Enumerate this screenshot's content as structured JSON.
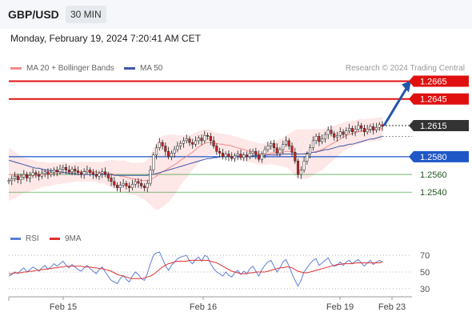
{
  "header": {
    "pair": "GBP/USD",
    "timeframe": "30 MIN"
  },
  "timestamp": "Monday, February 19, 2024 7:20:41 AM CET",
  "source": "Research © 2024 Trading Central",
  "colors": {
    "resistance": "#e01010",
    "current": "#333333",
    "pivot": "#1f57c7",
    "support": "#2e9c2e",
    "ma20": "#f28b8b",
    "ma50": "#3e56a8",
    "band": "#fbd3d3",
    "rsi": "#5b7fd6",
    "rsi_ma": "#e03030",
    "bull": "#ffffff",
    "bear": "#cc2222",
    "arrow": "#2456a8"
  },
  "chart_data": [
    {
      "type": "candlestick",
      "title": "GBP/USD 30 MIN",
      "legend": [
        {
          "label": "MA 20 + Bollinger Bands",
          "color": "#f28b8b"
        },
        {
          "label": "MA 50",
          "color": "#3e56a8"
        }
      ],
      "legend_position": "top-left",
      "x_ticks": [
        "Feb 15",
        "Feb 16",
        "Feb 19",
        "Feb 23"
      ],
      "ylim": [
        1.2524,
        1.267
      ],
      "levels": [
        {
          "value": 1.2665,
          "label": "1.2665",
          "kind": "resistance"
        },
        {
          "value": 1.2645,
          "label": "1.2645",
          "kind": "resistance"
        },
        {
          "value": 1.2615,
          "label": "1.2615",
          "kind": "current"
        },
        {
          "value": 1.258,
          "label": "1.2580",
          "kind": "pivot"
        },
        {
          "value": 1.256,
          "label": "1.2560",
          "kind": "support"
        },
        {
          "value": 1.254,
          "label": "1.2540",
          "kind": "support"
        }
      ],
      "close": [
        1.2553,
        1.2555,
        1.2558,
        1.2554,
        1.2557,
        1.256,
        1.2556,
        1.2559,
        1.2562,
        1.256,
        1.2558,
        1.2561,
        1.2563,
        1.256,
        1.2562,
        1.2565,
        1.2563,
        1.2566,
        1.2568,
        1.2565,
        1.2563,
        1.2566,
        1.2564,
        1.2562,
        1.256,
        1.2563,
        1.2565,
        1.2562,
        1.256,
        1.2558,
        1.2561,
        1.2563,
        1.256,
        1.2556,
        1.2552,
        1.2548,
        1.2545,
        1.2548,
        1.255,
        1.2547,
        1.2545,
        1.2549,
        1.2552,
        1.255,
        1.2547,
        1.2545,
        1.255,
        1.2565,
        1.2582,
        1.259,
        1.2596,
        1.2592,
        1.2586,
        1.258,
        1.2584,
        1.2588,
        1.2592,
        1.2595,
        1.2598,
        1.26,
        1.2596,
        1.2594,
        1.2598,
        1.2601,
        1.2598,
        1.2604,
        1.2603,
        1.2598,
        1.2592,
        1.2586,
        1.2584,
        1.258,
        1.2583,
        1.258,
        1.2578,
        1.2581,
        1.2583,
        1.2579,
        1.2582,
        1.258,
        1.2584,
        1.2586,
        1.2582,
        1.2577,
        1.2583,
        1.2588,
        1.2592,
        1.2595,
        1.259,
        1.2584,
        1.2588,
        1.2594,
        1.2598,
        1.2592,
        1.2585,
        1.2575,
        1.256,
        1.2565,
        1.2575,
        1.2583,
        1.259,
        1.2598,
        1.2603,
        1.2597,
        1.26,
        1.2605,
        1.261,
        1.2606,
        1.2602,
        1.2604,
        1.2608,
        1.2605,
        1.2609,
        1.2612,
        1.2608,
        1.2611,
        1.2615,
        1.2612,
        1.2608,
        1.2611,
        1.2614,
        1.261,
        1.2613,
        1.2616,
        1.2614
      ],
      "ma20": [
        1.256,
        1.256,
        1.2559,
        1.2559,
        1.2559,
        1.2559,
        1.2559,
        1.2559,
        1.2559,
        1.2559,
        1.2559,
        1.256,
        1.256,
        1.256,
        1.256,
        1.2561,
        1.2561,
        1.2561,
        1.2562,
        1.2562,
        1.2562,
        1.2562,
        1.2563,
        1.2563,
        1.2563,
        1.2563,
        1.2563,
        1.2563,
        1.2563,
        1.2563,
        1.2562,
        1.2562,
        1.2562,
        1.2561,
        1.2561,
        1.256,
        1.2559,
        1.2558,
        1.2558,
        1.2557,
        1.2556,
        1.2555,
        1.2555,
        1.2554,
        1.2553,
        1.2553,
        1.2553,
        1.2554,
        1.2556,
        1.2558,
        1.2561,
        1.2563,
        1.2565,
        1.2567,
        1.2569,
        1.2571,
        1.2573,
        1.2576,
        1.2578,
        1.258,
        1.2583,
        1.2585,
        1.2588,
        1.2591,
        1.2593,
        1.2595,
        1.2596,
        1.2596,
        1.2595,
        1.2595,
        1.2594,
        1.2594,
        1.2593,
        1.2593,
        1.2592,
        1.2591,
        1.259,
        1.2589,
        1.2588,
        1.2587,
        1.2586,
        1.2585,
        1.2584,
        1.2583,
        1.2583,
        1.2583,
        1.2583,
        1.2584,
        1.2584,
        1.2584,
        1.2585,
        1.2585,
        1.2586,
        1.2586,
        1.2585,
        1.2584,
        1.2583,
        1.2583,
        1.2583,
        1.2583,
        1.2584,
        1.2585,
        1.2586,
        1.2587,
        1.2588,
        1.259,
        1.2592,
        1.2594,
        1.2596,
        1.2598,
        1.26,
        1.2602,
        1.2604,
        1.2605,
        1.2606,
        1.2607,
        1.2608,
        1.2609,
        1.2609,
        1.261,
        1.261,
        1.261,
        1.2611,
        1.2611,
        1.2612
      ],
      "ma50": [
        1.2576,
        1.2575,
        1.2574,
        1.2573,
        1.2572,
        1.2571,
        1.257,
        1.2569,
        1.2568,
        1.2567,
        1.2567,
        1.2566,
        1.2565,
        1.2565,
        1.2564,
        1.2564,
        1.2563,
        1.2563,
        1.2562,
        1.2562,
        1.2561,
        1.2561,
        1.2561,
        1.256,
        1.256,
        1.256,
        1.256,
        1.256,
        1.256,
        1.256,
        1.256,
        1.256,
        1.256,
        1.256,
        1.256,
        1.2559,
        1.2559,
        1.2559,
        1.2559,
        1.2559,
        1.2559,
        1.2559,
        1.2559,
        1.2559,
        1.2559,
        1.2559,
        1.2559,
        1.256,
        1.256,
        1.2561,
        1.2562,
        1.2563,
        1.2564,
        1.2565,
        1.2566,
        1.2567,
        1.2568,
        1.2569,
        1.257,
        1.2571,
        1.2572,
        1.2573,
        1.2574,
        1.2575,
        1.2576,
        1.2577,
        1.2578,
        1.2578,
        1.2579,
        1.2579,
        1.258,
        1.258,
        1.258,
        1.258,
        1.258,
        1.258,
        1.258,
        1.258,
        1.258,
        1.258,
        1.258,
        1.2581,
        1.2581,
        1.2581,
        1.2581,
        1.2581,
        1.2582,
        1.2582,
        1.2582,
        1.2582,
        1.2582,
        1.2583,
        1.2583,
        1.2583,
        1.2583,
        1.2583,
        1.2583,
        1.2583,
        1.2583,
        1.2584,
        1.2584,
        1.2585,
        1.2585,
        1.2586,
        1.2587,
        1.2588,
        1.2588,
        1.2589,
        1.259,
        1.2591,
        1.2592,
        1.2592,
        1.2593,
        1.2594,
        1.2594,
        1.2595,
        1.2596,
        1.2597,
        1.2598,
        1.2599,
        1.26,
        1.26,
        1.2601,
        1.2602,
        1.2603
      ],
      "band_width": [
        0.003,
        0.0028,
        0.0026,
        0.0024,
        0.0022,
        0.002,
        0.0019,
        0.0018,
        0.0017,
        0.0016,
        0.0015,
        0.0014,
        0.0014,
        0.0013,
        0.0013,
        0.0013,
        0.0012,
        0.0012,
        0.0012,
        0.0012,
        0.0011,
        0.0011,
        0.0011,
        0.0011,
        0.0011,
        0.0011,
        0.0011,
        0.0011,
        0.0011,
        0.0011,
        0.0012,
        0.0012,
        0.0013,
        0.0014,
        0.0015,
        0.0016,
        0.0017,
        0.0017,
        0.0018,
        0.0018,
        0.0018,
        0.0018,
        0.0018,
        0.0019,
        0.002,
        0.0021,
        0.0024,
        0.0028,
        0.0034,
        0.0038,
        0.004,
        0.004,
        0.0039,
        0.0038,
        0.0036,
        0.0034,
        0.0031,
        0.0028,
        0.0026,
        0.0024,
        0.0022,
        0.002,
        0.0019,
        0.0018,
        0.0017,
        0.0016,
        0.0015,
        0.0014,
        0.0013,
        0.0012,
        0.0012,
        0.0012,
        0.0012,
        0.0012,
        0.0012,
        0.0012,
        0.0012,
        0.0012,
        0.0012,
        0.0012,
        0.0012,
        0.0012,
        0.0012,
        0.0012,
        0.0012,
        0.0012,
        0.0012,
        0.0012,
        0.0013,
        0.0014,
        0.0015,
        0.0016,
        0.0018,
        0.002,
        0.0023,
        0.0026,
        0.0028,
        0.0028,
        0.0028,
        0.0028,
        0.0027,
        0.0026,
        0.0025,
        0.0024,
        0.0023,
        0.0022,
        0.0021,
        0.002,
        0.0019,
        0.0018,
        0.0017,
        0.0016,
        0.0016,
        0.0015,
        0.0015,
        0.0014,
        0.0014,
        0.0014,
        0.0013,
        0.0013,
        0.0013,
        0.0013,
        0.0013,
        0.0013,
        0.0013
      ],
      "projection": [
        1.2615,
        1.2665
      ]
    },
    {
      "type": "line",
      "title": "RSI",
      "legend": [
        {
          "label": "RSI",
          "color": "#5b7fd6"
        },
        {
          "label": "9MA",
          "color": "#e03030"
        }
      ],
      "ylim": [
        25,
        75
      ],
      "yticks": [
        70,
        50,
        30
      ],
      "rsi": [
        45,
        47,
        50,
        48,
        52,
        55,
        50,
        53,
        56,
        54,
        51,
        55,
        58,
        53,
        56,
        60,
        57,
        60,
        63,
        58,
        55,
        59,
        56,
        53,
        51,
        55,
        58,
        54,
        51,
        48,
        53,
        56,
        50,
        45,
        40,
        38,
        36,
        42,
        46,
        41,
        38,
        45,
        50,
        47,
        42,
        40,
        48,
        60,
        70,
        73,
        74,
        66,
        58,
        52,
        58,
        62,
        66,
        68,
        69,
        70,
        63,
        60,
        65,
        68,
        63,
        70,
        68,
        60,
        54,
        50,
        48,
        45,
        50,
        46,
        44,
        49,
        52,
        47,
        51,
        48,
        54,
        57,
        51,
        45,
        53,
        58,
        62,
        64,
        57,
        50,
        55,
        62,
        65,
        57,
        48,
        40,
        33,
        40,
        50,
        55,
        60,
        64,
        66,
        58,
        61,
        64,
        67,
        60,
        57,
        58,
        62,
        58,
        62,
        64,
        60,
        63,
        65,
        61,
        57,
        61,
        64,
        59,
        62,
        64,
        62
      ],
      "ma9": [
        48,
        48,
        49,
        49,
        49,
        50,
        50,
        51,
        51,
        52,
        52,
        53,
        53,
        54,
        54,
        55,
        55,
        56,
        56,
        57,
        57,
        57,
        57,
        57,
        57,
        56,
        56,
        56,
        55,
        55,
        54,
        54,
        53,
        52,
        51,
        49,
        47,
        46,
        45,
        44,
        43,
        42,
        42,
        42,
        42,
        43,
        44,
        45,
        47,
        50,
        53,
        56,
        58,
        60,
        61,
        62,
        63,
        63,
        63,
        63,
        64,
        64,
        64,
        64,
        64,
        64,
        64,
        63,
        62,
        61,
        59,
        57,
        55,
        53,
        51,
        50,
        49,
        48,
        48,
        48,
        49,
        49,
        50,
        50,
        50,
        50,
        51,
        52,
        53,
        54,
        55,
        55,
        56,
        56,
        55,
        53,
        51,
        50,
        49,
        49,
        50,
        51,
        52,
        53,
        54,
        55,
        56,
        57,
        58,
        59,
        59,
        60,
        60,
        60,
        60,
        61,
        61,
        61,
        61,
        61,
        61,
        61,
        61,
        61,
        62
      ]
    }
  ]
}
